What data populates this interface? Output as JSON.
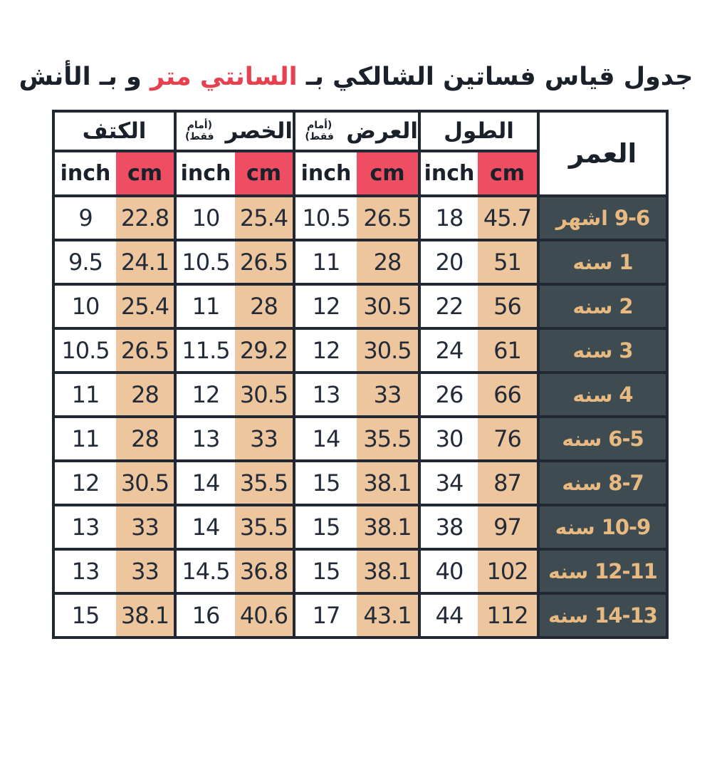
{
  "title": {
    "prefix": "جدول قياس فساتين الشالكي بـ ",
    "highlight": "السانتي متر",
    "suffix": " و بـ الأنش"
  },
  "colors": {
    "title_text": "#1b212b",
    "title_highlight_red": "#e74051",
    "header_cm_red": "#ee4d62",
    "cell_cm_tan": "#eec69e",
    "age_cell_teal": "#3e4b50",
    "age_text_gold": "#e8ba81",
    "border_dark": "#212833",
    "background": "#ffffff"
  },
  "table": {
    "age_header": "العمر",
    "unit_inch": "inch",
    "unit_cm": "cm",
    "groups": [
      {
        "label": "الكتف",
        "note": ""
      },
      {
        "label": "الخصر",
        "note": "(أمام فقط)"
      },
      {
        "label": "العرض",
        "note": "(أمام فقط)"
      },
      {
        "label": "الطول",
        "note": ""
      }
    ]
  },
  "chart_data": {
    "type": "table",
    "title": "جدول قياس فساتين الشالكي بـ السانتي متر و بـ الأنش",
    "columns_rtl_order": [
      "العمر",
      "الطول inch",
      "الطول cm",
      "العرض (أمام فقط) inch",
      "العرض (أمام فقط) cm",
      "الخصر (أمام فقط) inch",
      "الخصر (أمام فقط) cm",
      "الكتف inch",
      "الكتف cm"
    ],
    "rows": [
      {
        "age_word": "اشهر",
        "age_range": "9-6",
        "shoulder_inch": "9",
        "shoulder_cm": "22.8",
        "waist_inch": "10",
        "waist_cm": "25.4",
        "width_inch": "10.5",
        "width_cm": "26.5",
        "length_inch": "18",
        "length_cm": "45.7"
      },
      {
        "age_word": "سنه",
        "age_range": "1",
        "shoulder_inch": "9.5",
        "shoulder_cm": "24.1",
        "waist_inch": "10.5",
        "waist_cm": "26.5",
        "width_inch": "11",
        "width_cm": "28",
        "length_inch": "20",
        "length_cm": "51"
      },
      {
        "age_word": "سنه",
        "age_range": "2",
        "shoulder_inch": "10",
        "shoulder_cm": "25.4",
        "waist_inch": "11",
        "waist_cm": "28",
        "width_inch": "12",
        "width_cm": "30.5",
        "length_inch": "22",
        "length_cm": "56"
      },
      {
        "age_word": "سنه",
        "age_range": "3",
        "shoulder_inch": "10.5",
        "shoulder_cm": "26.5",
        "waist_inch": "11.5",
        "waist_cm": "29.2",
        "width_inch": "12",
        "width_cm": "30.5",
        "length_inch": "24",
        "length_cm": "61"
      },
      {
        "age_word": "سنه",
        "age_range": "4",
        "shoulder_inch": "11",
        "shoulder_cm": "28",
        "waist_inch": "12",
        "waist_cm": "30.5",
        "width_inch": "13",
        "width_cm": "33",
        "length_inch": "26",
        "length_cm": "66"
      },
      {
        "age_word": "سنه",
        "age_range": "6-5",
        "shoulder_inch": "11",
        "shoulder_cm": "28",
        "waist_inch": "13",
        "waist_cm": "33",
        "width_inch": "14",
        "width_cm": "35.5",
        "length_inch": "30",
        "length_cm": "76"
      },
      {
        "age_word": "سنه",
        "age_range": "8-7",
        "shoulder_inch": "12",
        "shoulder_cm": "30.5",
        "waist_inch": "14",
        "waist_cm": "35.5",
        "width_inch": "15",
        "width_cm": "38.1",
        "length_inch": "34",
        "length_cm": "87"
      },
      {
        "age_word": "سنه",
        "age_range": "10-9",
        "shoulder_inch": "13",
        "shoulder_cm": "33",
        "waist_inch": "14",
        "waist_cm": "35.5",
        "width_inch": "15",
        "width_cm": "38.1",
        "length_inch": "38",
        "length_cm": "97"
      },
      {
        "age_word": "سنه",
        "age_range": "12-11",
        "shoulder_inch": "13",
        "shoulder_cm": "33",
        "waist_inch": "14.5",
        "waist_cm": "36.8",
        "width_inch": "15",
        "width_cm": "38.1",
        "length_inch": "40",
        "length_cm": "102"
      },
      {
        "age_word": "سنه",
        "age_range": "14-13",
        "shoulder_inch": "15",
        "shoulder_cm": "38.1",
        "waist_inch": "16",
        "waist_cm": "40.6",
        "width_inch": "17",
        "width_cm": "43.1",
        "length_inch": "44",
        "length_cm": "112"
      }
    ]
  }
}
